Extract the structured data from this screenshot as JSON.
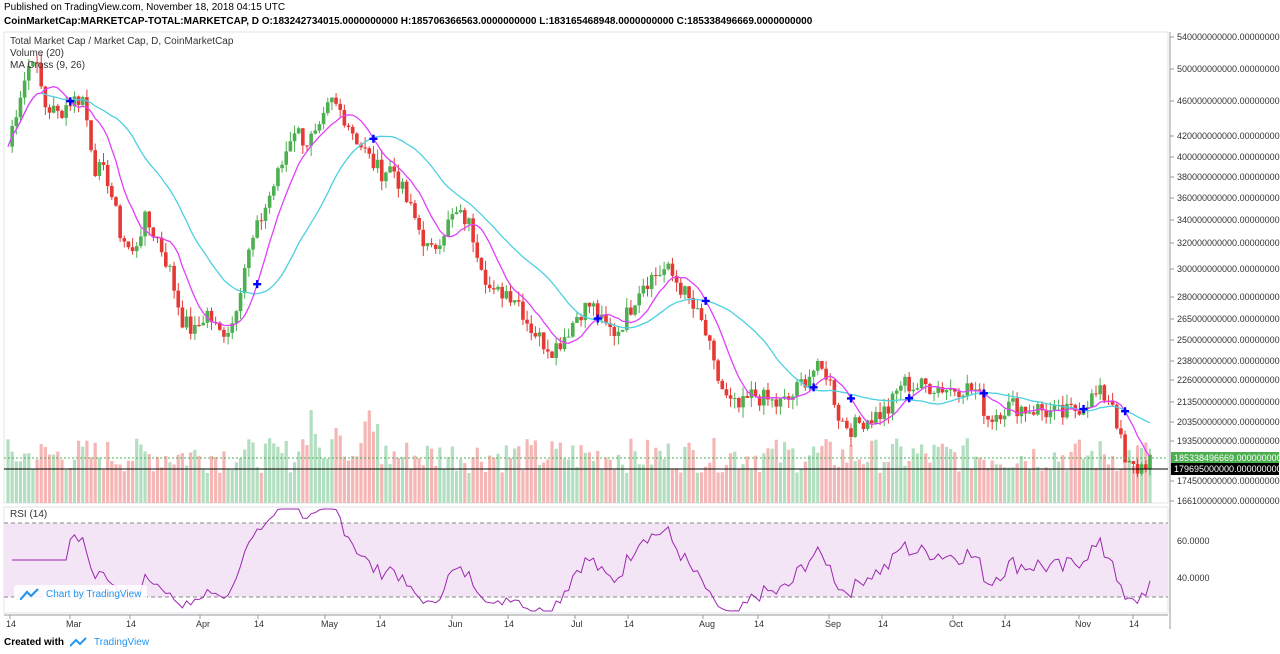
{
  "header": {
    "published": "Published on TradingView.com, November 18, 2018 04:15 UTC",
    "symbol_line": "CoinMarketCap:MARKETCAP-TOTAL:MARKETCAP, D  O:183242734015.0000000000 H:185706366563.0000000000 L:183165468948.0000000000 C:185338496669.0000000000"
  },
  "legend": {
    "title": "Total Market Cap / Market Cap, D, CoinMarketCap",
    "volume": "Volume (20)",
    "ma": "MA Cross (9, 26)"
  },
  "rsi": {
    "label": "RSI (14)",
    "ticks": [
      "60.0000",
      "40.0000"
    ]
  },
  "price_axis": {
    "labels": [
      "540000000000.0000000000",
      "500000000000.0000000000",
      "460000000000.0000000000",
      "420000000000.0000000000",
      "400000000000.0000000000",
      "380000000000.0000000000",
      "360000000000.0000000000",
      "340000000000.0000000000",
      "320000000000.0000000000",
      "300000000000.0000000000",
      "280000000000.0000000000",
      "265000000000.0000000000",
      "250000000000.0000000000",
      "238000000000.0000000000",
      "226000000000.0000000000",
      "213500000000.0000000000",
      "203500000000.0000000000",
      "193500000000.0000000000",
      "174500000000.0000000000",
      "166100000000.0000000000"
    ],
    "current_price": "185338496669.0000000000",
    "marker_price": "179695000000.0000000000",
    "current_color": "#4caf50",
    "marker_color": "#000000"
  },
  "time_axis": [
    "14",
    "Mar",
    "14",
    "Apr",
    "14",
    "May",
    "14",
    "Jun",
    "14",
    "Jul",
    "14",
    "Aug",
    "14",
    "Sep",
    "14",
    "Oct",
    "14",
    "Nov",
    "14"
  ],
  "brand": {
    "chart_by": "Chart by TradingView",
    "created_with": "Created with",
    "tv": "TradingView"
  },
  "colors": {
    "up": "#4caf50",
    "down": "#e53935",
    "ma_fast": "#e040fb",
    "ma_slow": "#4dd0e1",
    "cross": "#0000ff",
    "rsi": "#9c27b0",
    "rsi_band": "#f3e5f5"
  },
  "chart_data": {
    "type": "candlestick",
    "title": "Total Market Cap / Market Cap, D, CoinMarketCap",
    "ylabel": "",
    "ylim": [
      160000000000,
      550000000000
    ],
    "close_path_approx": [
      [
        "Feb-15",
        410
      ],
      [
        "Feb-18",
        470
      ],
      [
        "Feb-22",
        520
      ],
      [
        "Feb-26",
        455
      ],
      [
        "Mar-01",
        445
      ],
      [
        "Mar-04",
        460
      ],
      [
        "Mar-06",
        465
      ],
      [
        "Mar-08",
        390
      ],
      [
        "Mar-11",
        380
      ],
      [
        "Mar-14",
        330
      ],
      [
        "Mar-17",
        310
      ],
      [
        "Mar-20",
        340
      ],
      [
        "Mar-23",
        325
      ],
      [
        "Mar-26",
        300
      ],
      [
        "Mar-29",
        265
      ],
      [
        "Apr-01",
        255
      ],
      [
        "Apr-04",
        270
      ],
      [
        "Apr-07",
        255
      ],
      [
        "Apr-10",
        260
      ],
      [
        "Apr-13",
        300
      ],
      [
        "Apr-16",
        330
      ],
      [
        "Apr-19",
        360
      ],
      [
        "Apr-22",
        390
      ],
      [
        "Apr-25",
        430
      ],
      [
        "Apr-28",
        415
      ],
      [
        "May-01",
        420
      ],
      [
        "May-05",
        460
      ],
      [
        "May-07",
        445
      ],
      [
        "May-10",
        420
      ],
      [
        "May-13",
        400
      ],
      [
        "May-16",
        385
      ],
      [
        "May-19",
        390
      ],
      [
        "May-22",
        360
      ],
      [
        "May-25",
        335
      ],
      [
        "May-28",
        310
      ],
      [
        "Jun-01",
        330
      ],
      [
        "Jun-04",
        345
      ],
      [
        "Jun-07",
        340
      ],
      [
        "Jun-10",
        310
      ],
      [
        "Jun-13",
        280
      ],
      [
        "Jun-16",
        285
      ],
      [
        "Jun-19",
        280
      ],
      [
        "Jun-22",
        260
      ],
      [
        "Jun-25",
        250
      ],
      [
        "Jun-28",
        245
      ],
      [
        "Jul-01",
        255
      ],
      [
        "Jul-04",
        270
      ],
      [
        "Jul-07",
        275
      ],
      [
        "Jul-10",
        260
      ],
      [
        "Jul-13",
        255
      ],
      [
        "Jul-16",
        270
      ],
      [
        "Jul-19",
        290
      ],
      [
        "Jul-22",
        295
      ],
      [
        "Jul-25",
        300
      ],
      [
        "Jul-28",
        290
      ],
      [
        "Aug-01",
        275
      ],
      [
        "Aug-04",
        260
      ],
      [
        "Aug-07",
        230
      ],
      [
        "Aug-10",
        213
      ],
      [
        "Aug-13",
        210
      ],
      [
        "Aug-16",
        218
      ],
      [
        "Aug-19",
        215
      ],
      [
        "Aug-22",
        212
      ],
      [
        "Aug-25",
        215
      ],
      [
        "Aug-28",
        225
      ],
      [
        "Sep-01",
        233
      ],
      [
        "Sep-04",
        230
      ],
      [
        "Sep-07",
        205
      ],
      [
        "Sep-10",
        200
      ],
      [
        "Sep-13",
        205
      ],
      [
        "Sep-16",
        207
      ],
      [
        "Sep-19",
        210
      ],
      [
        "Sep-22",
        225
      ],
      [
        "Sep-25",
        222
      ],
      [
        "Sep-28",
        223
      ],
      [
        "Oct-01",
        222
      ],
      [
        "Oct-04",
        221
      ],
      [
        "Oct-07",
        222
      ],
      [
        "Oct-10",
        220
      ],
      [
        "Oct-11",
        205
      ],
      [
        "Oct-14",
        210
      ],
      [
        "Oct-17",
        212
      ],
      [
        "Oct-20",
        210
      ],
      [
        "Oct-23",
        210
      ],
      [
        "Oct-26",
        208
      ],
      [
        "Oct-29",
        207
      ],
      [
        "Nov-01",
        210
      ],
      [
        "Nov-04",
        215
      ],
      [
        "Nov-07",
        218
      ],
      [
        "Nov-10",
        214
      ],
      [
        "Nov-14",
        182
      ],
      [
        "Nov-16",
        180
      ],
      [
        "Nov-18",
        185
      ]
    ]
  }
}
